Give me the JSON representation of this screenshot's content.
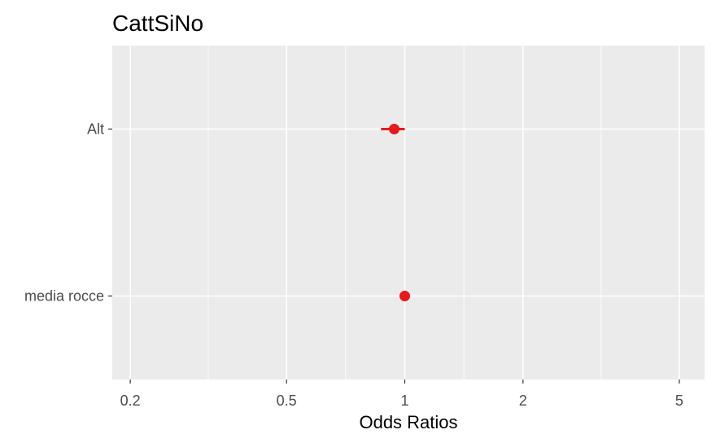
{
  "chart_data": {
    "type": "scatter",
    "title": "CattSiNo",
    "xlabel": "Odds Ratios",
    "ylabel": "",
    "x_scale": "log",
    "xlim": [
      0.18,
      5.8
    ],
    "xticks": [
      {
        "value": 0.2,
        "label": "0.2"
      },
      {
        "value": 0.5,
        "label": "0.5"
      },
      {
        "value": 1,
        "label": "1"
      },
      {
        "value": 2,
        "label": "2"
      },
      {
        "value": 5,
        "label": "5"
      }
    ],
    "x_minor_gridlines": [
      0.316,
      0.707,
      1.414,
      3.162
    ],
    "categories": [
      "Alt",
      "media rocce"
    ],
    "points": [
      {
        "label": "Alt",
        "estimate": 0.94,
        "ci_low": 0.87,
        "ci_high": 1.0
      },
      {
        "label": "media rocce",
        "estimate": 1.0,
        "ci_low": 0.995,
        "ci_high": 1.005
      }
    ],
    "grid": true,
    "colors": {
      "panel_background": "#ebebeb",
      "gridline": "#ffffff",
      "point": "#e41a1c",
      "tick_mark": "#333333"
    }
  }
}
